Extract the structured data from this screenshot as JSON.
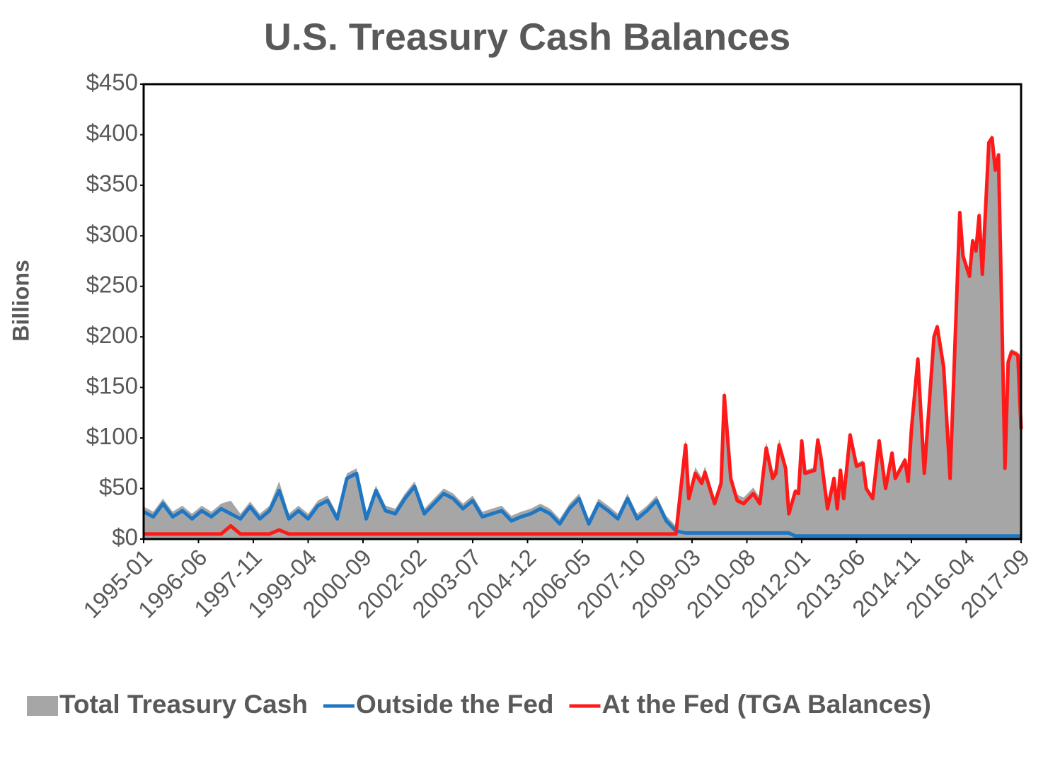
{
  "chart_data": {
    "type": "area-line",
    "title": "U.S. Treasury Cash Balances",
    "y_label": "Billions",
    "x": [
      "1995-01",
      "1995-04",
      "1995-07",
      "1995-10",
      "1996-01",
      "1996-04",
      "1996-07",
      "1996-10",
      "1997-01",
      "1997-04",
      "1997-07",
      "1997-10",
      "1998-01",
      "1998-04",
      "1998-07",
      "1998-10",
      "1999-01",
      "1999-04",
      "1999-07",
      "1999-10",
      "2000-01",
      "2000-04",
      "2000-07",
      "2000-10",
      "2001-01",
      "2001-04",
      "2001-07",
      "2001-10",
      "2002-01",
      "2002-04",
      "2002-07",
      "2002-10",
      "2003-01",
      "2003-04",
      "2003-07",
      "2003-10",
      "2004-01",
      "2004-04",
      "2004-07",
      "2004-10",
      "2005-01",
      "2005-04",
      "2005-07",
      "2005-10",
      "2006-01",
      "2006-04",
      "2006-07",
      "2006-10",
      "2007-01",
      "2007-04",
      "2007-07",
      "2007-10",
      "2008-01",
      "2008-04",
      "2008-07",
      "2008-10",
      "2009-01",
      "2009-02",
      "2009-04",
      "2009-06",
      "2009-07",
      "2009-09",
      "2009-10",
      "2009-12",
      "2010-01",
      "2010-03",
      "2010-05",
      "2010-07",
      "2010-10",
      "2010-12",
      "2011-02",
      "2011-04",
      "2011-05",
      "2011-06",
      "2011-08",
      "2011-09",
      "2011-11",
      "2011-12",
      "2012-01",
      "2012-02",
      "2012-05",
      "2012-06",
      "2012-07",
      "2012-09",
      "2012-11",
      "2012-12",
      "2013-01",
      "2013-02",
      "2013-04",
      "2013-06",
      "2013-08",
      "2013-09",
      "2013-11",
      "2014-01",
      "2014-03",
      "2014-05",
      "2014-06",
      "2014-09",
      "2014-10",
      "2014-11",
      "2015-01",
      "2015-03",
      "2015-06",
      "2015-07",
      "2015-09",
      "2015-11",
      "2016-02",
      "2016-03",
      "2016-05",
      "2016-06",
      "2016-07",
      "2016-08",
      "2016-09",
      "2016-11",
      "2016-12",
      "2017-01",
      "2017-02",
      "2017-04",
      "2017-05",
      "2017-06",
      "2017-08",
      "2017-09"
    ],
    "xlim": [
      "1995-01",
      "2017-09"
    ],
    "xticks": [
      "1995-01",
      "1996-06",
      "1997-11",
      "1999-04",
      "2000-09",
      "2002-02",
      "2003-07",
      "2004-12",
      "2006-05",
      "2007-10",
      "2009-03",
      "2010-08",
      "2012-01",
      "2013-06",
      "2014-11",
      "2016-04",
      "2017-09"
    ],
    "ylim": [
      0,
      450
    ],
    "yticks": [
      {
        "value": 0,
        "label": "$0"
      },
      {
        "value": 50,
        "label": "$50"
      },
      {
        "value": 100,
        "label": "$100"
      },
      {
        "value": 150,
        "label": "$150"
      },
      {
        "value": 200,
        "label": "$200"
      },
      {
        "value": 250,
        "label": "$250"
      },
      {
        "value": 300,
        "label": "$300"
      },
      {
        "value": 350,
        "label": "$350"
      },
      {
        "value": 400,
        "label": "$400"
      },
      {
        "value": 450,
        "label": "$450"
      }
    ],
    "series": [
      {
        "name": "Total Treasury Cash",
        "kind": "area",
        "color": "#a6a6a6",
        "values": [
          32,
          27,
          40,
          27,
          33,
          25,
          33,
          27,
          35,
          38,
          25,
          37,
          25,
          33,
          57,
          25,
          33,
          25,
          38,
          43,
          25,
          65,
          70,
          25,
          53,
          33,
          30,
          45,
          57,
          30,
          40,
          50,
          45,
          35,
          43,
          27,
          30,
          33,
          23,
          27,
          30,
          35,
          30,
          20,
          35,
          45,
          20,
          40,
          33,
          25,
          45,
          25,
          33,
          43,
          23,
          13,
          99,
          46,
          71,
          61,
          72,
          51,
          41,
          61,
          148,
          66,
          44,
          41,
          51,
          41,
          96,
          66,
          71,
          99,
          76,
          31,
          50,
          48,
          100,
          68,
          71,
          101,
          83,
          33,
          63,
          33,
          71,
          43,
          106,
          75,
          78,
          53,
          43,
          100,
          53,
          88,
          63,
          81,
          60,
          111,
          181,
          68,
          203,
          213,
          173,
          63,
          326,
          283,
          263,
          298,
          288,
          323,
          265,
          395,
          400,
          368,
          383,
          73,
          178,
          188,
          185,
          112
        ]
      },
      {
        "name": "Outside the Fed",
        "kind": "line",
        "color": "#1f77c4",
        "values": [
          27,
          22,
          35,
          22,
          28,
          20,
          28,
          22,
          30,
          25,
          20,
          32,
          20,
          28,
          48,
          20,
          28,
          20,
          33,
          38,
          20,
          60,
          65,
          20,
          48,
          28,
          25,
          40,
          52,
          25,
          35,
          45,
          40,
          30,
          38,
          22,
          25,
          28,
          18,
          22,
          25,
          30,
          25,
          15,
          30,
          40,
          15,
          35,
          28,
          20,
          40,
          20,
          28,
          38,
          18,
          8,
          6,
          6,
          6,
          6,
          6,
          6,
          6,
          6,
          6,
          6,
          6,
          6,
          6,
          6,
          6,
          6,
          6,
          6,
          6,
          6,
          3,
          3,
          3,
          3,
          3,
          3,
          3,
          3,
          3,
          3,
          3,
          3,
          3,
          3,
          3,
          3,
          3,
          3,
          3,
          3,
          3,
          3,
          3,
          3,
          3,
          3,
          3,
          3,
          3,
          3,
          3,
          3,
          3,
          3,
          3,
          3,
          3,
          3,
          3,
          3,
          3,
          3,
          3,
          3,
          3,
          3
        ]
      },
      {
        "name": "At the Fed (TGA Balances)",
        "kind": "line",
        "color": "#ff1a1a",
        "values": [
          5,
          5,
          5,
          5,
          5,
          5,
          5,
          5,
          5,
          13,
          5,
          5,
          5,
          5,
          9,
          5,
          5,
          5,
          5,
          5,
          5,
          5,
          5,
          5,
          5,
          5,
          5,
          5,
          5,
          5,
          5,
          5,
          5,
          5,
          5,
          5,
          5,
          5,
          5,
          5,
          5,
          5,
          5,
          5,
          5,
          5,
          5,
          5,
          5,
          5,
          5,
          5,
          5,
          5,
          5,
          5,
          93,
          40,
          65,
          55,
          66,
          45,
          35,
          55,
          142,
          60,
          38,
          35,
          45,
          35,
          90,
          60,
          65,
          93,
          70,
          25,
          47,
          45,
          97,
          65,
          68,
          98,
          80,
          30,
          60,
          30,
          68,
          40,
          103,
          72,
          75,
          50,
          40,
          97,
          50,
          85,
          60,
          78,
          57,
          108,
          178,
          65,
          200,
          210,
          170,
          60,
          323,
          280,
          260,
          295,
          285,
          320,
          262,
          392,
          397,
          365,
          380,
          70,
          175,
          185,
          182,
          109
        ]
      }
    ]
  }
}
